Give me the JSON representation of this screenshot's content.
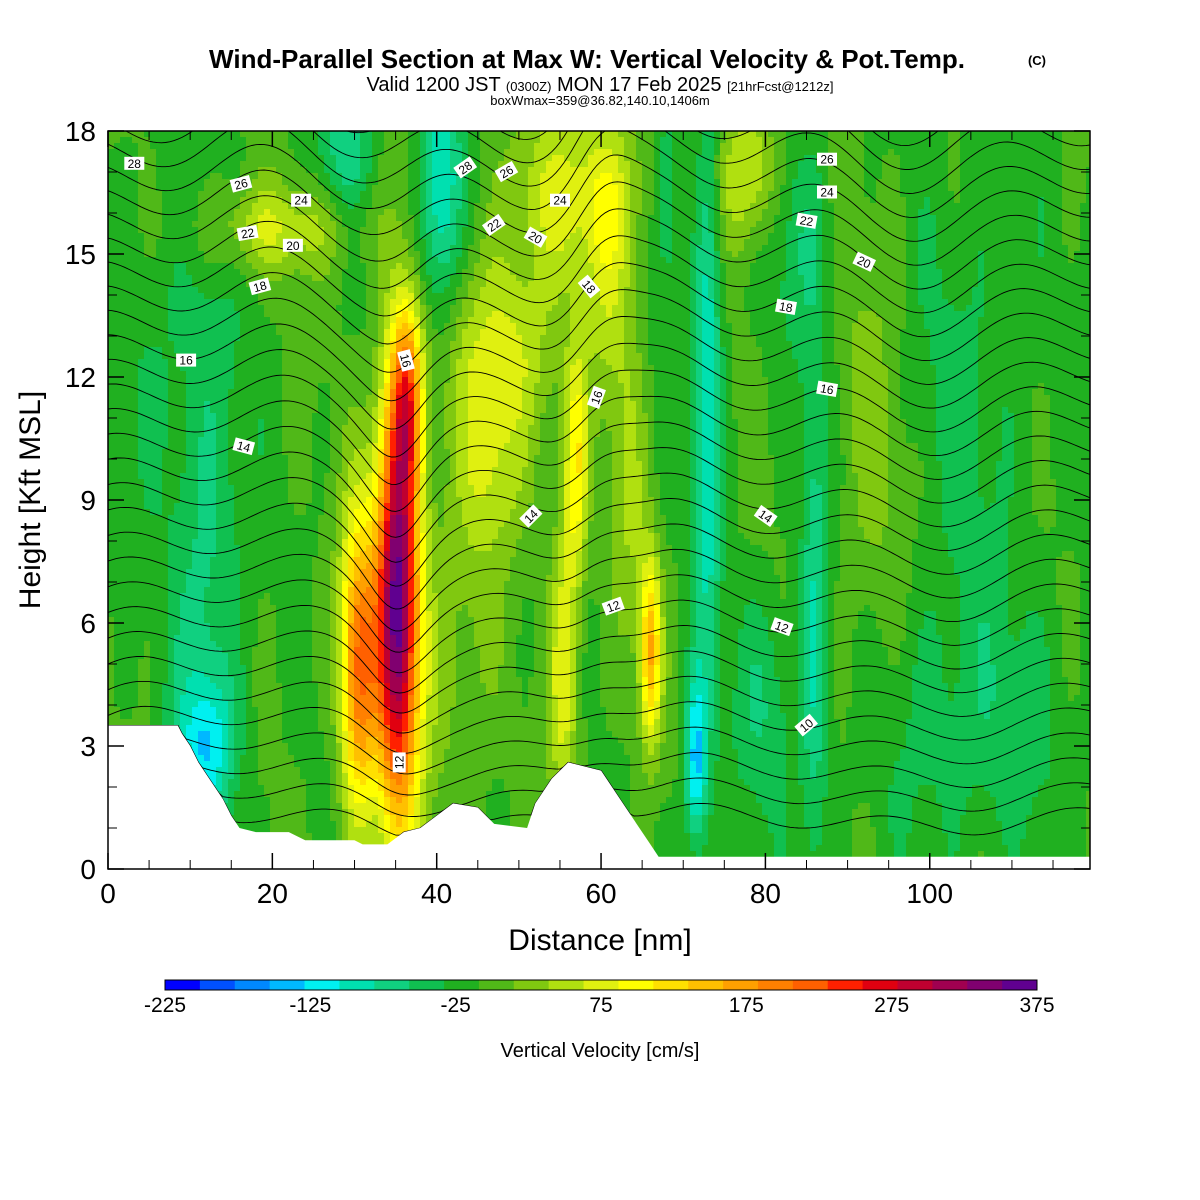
{
  "chart_data": {
    "type": "heatmap",
    "title": "Wind-Parallel Section at Max W: Vertical Velocity & Pot.Temp.",
    "title_mark": "(C)",
    "subtitle": {
      "valid": "Valid 1200 JST",
      "zulu": "(0300Z)",
      "date": "MON 17 Feb 2025",
      "fcst": "[21hrFcst@1212z]"
    },
    "annotation": "boxWmax=359@36.82,140.10,1406m",
    "xlabel": "Distance [nm]",
    "ylabel": "Height [Kft MSL]",
    "xlim": [
      0,
      119.5
    ],
    "ylim": [
      0,
      18
    ],
    "x_ticks": [
      "0",
      "20",
      "40",
      "60",
      "80",
      "100"
    ],
    "y_ticks": [
      "0",
      "3",
      "6",
      "9",
      "12",
      "15",
      "18"
    ],
    "colorbar": {
      "label": "Vertical Velocity [cm/s]",
      "min": -225,
      "max": 375,
      "step": 25,
      "tick_labels": [
        "-225",
        "-125",
        "-25",
        "75",
        "175",
        "275",
        "375"
      ],
      "colors": [
        "#0000ff",
        "#0050ff",
        "#0088ff",
        "#00b8ff",
        "#00f0f0",
        "#00e0b0",
        "#10d080",
        "#10c050",
        "#20b020",
        "#50b818",
        "#80c810",
        "#b0e010",
        "#e0f010",
        "#ffff00",
        "#ffe000",
        "#ffc000",
        "#ffa000",
        "#ff8000",
        "#ff6000",
        "#ff2000",
        "#e00010",
        "#c00030",
        "#a00050",
        "#800070",
        "#600090"
      ]
    },
    "vertical_velocity": {
      "background": 0,
      "features": [
        {
          "x": 35.2,
          "y": 6.6,
          "sx": 1.8,
          "sy": 3.8,
          "w": 375
        },
        {
          "x": 30.5,
          "y": 5.0,
          "sx": 1.6,
          "sy": 2.6,
          "w": 225
        },
        {
          "x": 36.5,
          "y": 11.5,
          "sx": 1.3,
          "sy": 1.6,
          "w": 160
        },
        {
          "x": 66.0,
          "y": 5.3,
          "sx": 0.9,
          "sy": 1.6,
          "w": 170
        },
        {
          "x": 55.5,
          "y": 5.0,
          "sx": 1.3,
          "sy": 2.6,
          "w": 95
        },
        {
          "x": 57.0,
          "y": 9.8,
          "sx": 1.0,
          "sy": 2.0,
          "w": 110
        },
        {
          "x": 48.0,
          "y": 12.6,
          "sx": 4.5,
          "sy": 1.7,
          "w": 90
        },
        {
          "x": 47.0,
          "y": 9.5,
          "sx": 3.0,
          "sy": 1.4,
          "w": 55
        },
        {
          "x": 57.0,
          "y": 16.5,
          "sx": 6.0,
          "sy": 1.5,
          "w": 80
        },
        {
          "x": 78.0,
          "y": 17.0,
          "sx": 2.5,
          "sy": 1.3,
          "w": 90
        },
        {
          "x": 20.0,
          "y": 15.6,
          "sx": 6.5,
          "sy": 0.8,
          "w": 70
        },
        {
          "x": 38.5,
          "y": 5.0,
          "sx": 2.5,
          "sy": 3.0,
          "w": 40
        },
        {
          "x": 44.0,
          "y": 5.5,
          "sx": 2.5,
          "sy": 3.0,
          "w": 30
        },
        {
          "x": 63.5,
          "y": 9.0,
          "sx": 1.5,
          "sy": 3.0,
          "w": 45
        },
        {
          "x": 93.0,
          "y": 10.0,
          "sx": 3.0,
          "sy": 4.5,
          "w": 35
        },
        {
          "x": 61.0,
          "y": 14.5,
          "sx": 2.0,
          "sy": 2.5,
          "w": 60
        },
        {
          "x": 12.0,
          "y": 6.5,
          "sx": 3.0,
          "sy": 3.5,
          "w": -60
        },
        {
          "x": 12.0,
          "y": 3.0,
          "sx": 2.5,
          "sy": 1.2,
          "w": -90
        },
        {
          "x": 71.5,
          "y": 2.6,
          "sx": 1.0,
          "sy": 1.5,
          "w": -130
        },
        {
          "x": 73.0,
          "y": 11.5,
          "sx": 1.2,
          "sy": 5.0,
          "w": -100
        },
        {
          "x": 40.5,
          "y": 16.5,
          "sx": 1.8,
          "sy": 2.2,
          "w": -110
        },
        {
          "x": 29.0,
          "y": 17.5,
          "sx": 2.5,
          "sy": 1.0,
          "w": -60
        },
        {
          "x": 86.0,
          "y": 6.0,
          "sx": 1.2,
          "sy": 5.0,
          "w": -70
        },
        {
          "x": 80.0,
          "y": 4.0,
          "sx": 3.0,
          "sy": 2.0,
          "w": -45
        },
        {
          "x": 105.0,
          "y": 3.5,
          "sx": 9.0,
          "sy": 2.5,
          "w": -40
        },
        {
          "x": 68.0,
          "y": 16.5,
          "sx": 1.3,
          "sy": 2.0,
          "w": -60
        },
        {
          "x": 84.0,
          "y": 15.5,
          "sx": 3.0,
          "sy": 2.0,
          "w": -40
        },
        {
          "x": 8.0,
          "y": 13.0,
          "sx": 6.0,
          "sy": 3.0,
          "w": -30
        },
        {
          "x": 105.0,
          "y": 12.0,
          "sx": 6.0,
          "sy": 4.0,
          "w": -30
        }
      ]
    },
    "terrain_kft": [
      [
        0,
        3.5
      ],
      [
        8.5,
        3.5
      ],
      [
        9,
        3.3
      ],
      [
        10,
        3.0
      ],
      [
        11,
        2.6
      ],
      [
        12,
        2.3
      ],
      [
        13,
        2.0
      ],
      [
        14,
        1.7
      ],
      [
        15,
        1.3
      ],
      [
        16,
        1.0
      ],
      [
        18,
        0.9
      ],
      [
        22,
        0.9
      ],
      [
        24,
        0.7
      ],
      [
        30,
        0.7
      ],
      [
        31,
        0.6
      ],
      [
        34,
        0.6
      ],
      [
        36,
        0.9
      ],
      [
        38,
        1.0
      ],
      [
        42,
        1.6
      ],
      [
        45,
        1.5
      ],
      [
        47,
        1.1
      ],
      [
        51,
        1.0
      ],
      [
        52,
        1.6
      ],
      [
        54,
        2.2
      ],
      [
        56,
        2.6
      ],
      [
        60,
        2.4
      ],
      [
        62,
        1.8
      ],
      [
        64,
        1.2
      ],
      [
        66,
        0.6
      ],
      [
        67,
        0.3
      ],
      [
        119.5,
        0.3
      ]
    ],
    "theta_isentropes": {
      "labels": [
        "10",
        "12",
        "14",
        "16",
        "18",
        "20",
        "22",
        "24",
        "26",
        "28"
      ],
      "level_offset": 0,
      "labeled_points": [
        {
          "text": "28",
          "x": 3.2,
          "y": 17.2,
          "rot": 0
        },
        {
          "text": "26",
          "x": 16.2,
          "y": 16.7,
          "rot": -15
        },
        {
          "text": "24",
          "x": 23.5,
          "y": 16.3,
          "rot": 0
        },
        {
          "text": "22",
          "x": 17.0,
          "y": 15.5,
          "rot": -10
        },
        {
          "text": "20",
          "x": 22.5,
          "y": 15.2,
          "rot": 0
        },
        {
          "text": "18",
          "x": 18.5,
          "y": 14.2,
          "rot": -15
        },
        {
          "text": "16",
          "x": 9.5,
          "y": 12.4,
          "rot": 0
        },
        {
          "text": "14",
          "x": 16.5,
          "y": 10.3,
          "rot": 15
        },
        {
          "text": "28",
          "x": 43.5,
          "y": 17.1,
          "rot": -35
        },
        {
          "text": "26",
          "x": 48.5,
          "y": 17.0,
          "rot": -30
        },
        {
          "text": "24",
          "x": 55.0,
          "y": 16.3,
          "rot": 0
        },
        {
          "text": "22",
          "x": 47.0,
          "y": 15.7,
          "rot": -35
        },
        {
          "text": "20",
          "x": 52.0,
          "y": 15.4,
          "rot": 30
        },
        {
          "text": "18",
          "x": 58.5,
          "y": 14.2,
          "rot": 50
        },
        {
          "text": "16",
          "x": 36.2,
          "y": 12.4,
          "rot": 75
        },
        {
          "text": "16",
          "x": 59.5,
          "y": 11.5,
          "rot": -70
        },
        {
          "text": "14",
          "x": 51.5,
          "y": 8.6,
          "rot": -45
        },
        {
          "text": "12",
          "x": 61.5,
          "y": 6.4,
          "rot": -20
        },
        {
          "text": "12",
          "x": 35.5,
          "y": 2.6,
          "rot": -90
        },
        {
          "text": "26",
          "x": 87.5,
          "y": 17.3,
          "rot": 0
        },
        {
          "text": "24",
          "x": 87.5,
          "y": 16.5,
          "rot": 0
        },
        {
          "text": "22",
          "x": 85.0,
          "y": 15.8,
          "rot": 10
        },
        {
          "text": "20",
          "x": 92.0,
          "y": 14.8,
          "rot": 25
        },
        {
          "text": "18",
          "x": 82.5,
          "y": 13.7,
          "rot": 10
        },
        {
          "text": "16",
          "x": 87.5,
          "y": 11.7,
          "rot": 10
        },
        {
          "text": "14",
          "x": 80.0,
          "y": 8.6,
          "rot": 35
        },
        {
          "text": "12",
          "x": 82.0,
          "y": 5.9,
          "rot": 20
        },
        {
          "text": "10",
          "x": 85.0,
          "y": 3.5,
          "rot": -40
        }
      ]
    }
  }
}
